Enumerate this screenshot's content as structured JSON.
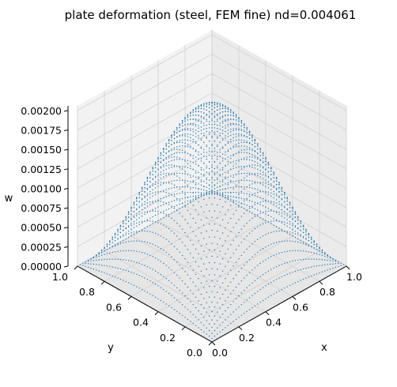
{
  "chart_data": {
    "type": "scatter",
    "title": "plate deformation (steel, FEM fine)  nd=0.004061",
    "xlabel": "x",
    "ylabel": "y",
    "zlabel": "w",
    "xlim": [
      0.0,
      1.0
    ],
    "ylim": [
      0.0,
      1.0
    ],
    "zlim": [
      0.0,
      0.00206
    ],
    "x_ticks": [
      "0.0",
      "0.2",
      "0.4",
      "0.6",
      "0.8",
      "1.0"
    ],
    "y_ticks": [
      "0.0",
      "0.2",
      "0.4",
      "0.6",
      "0.8",
      "1.0"
    ],
    "z_ticks": [
      "0.00000",
      "0.00025",
      "0.00050",
      "0.00075",
      "0.00100",
      "0.00125",
      "0.00150",
      "0.00175",
      "0.00200"
    ],
    "grid": true,
    "surface": {
      "function": "sin(pi x) sin(pi y) scaled",
      "max_w": 0.00206,
      "grid_points_per_side": 51,
      "color": "#1f77b4"
    },
    "colors": {
      "points": "#1f77b4",
      "pane_back": "#f2f2f2",
      "pane_side": "#ebebeb",
      "pane_floor": "#e6e6e6",
      "grid": "#d0d0d0"
    }
  }
}
